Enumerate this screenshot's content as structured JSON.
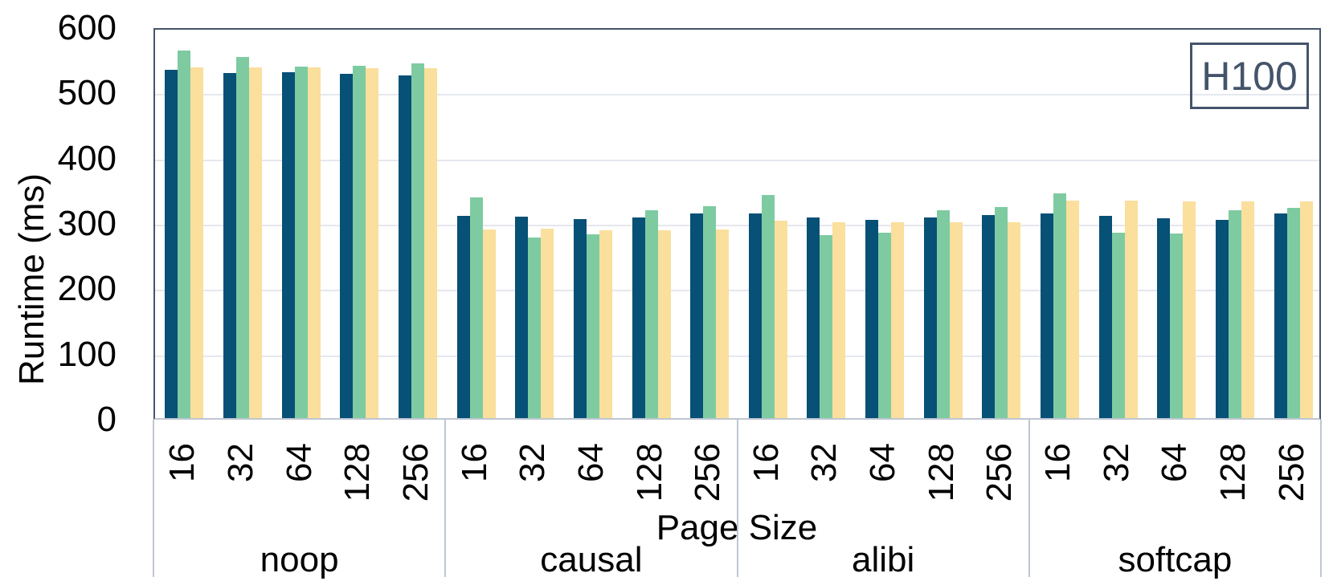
{
  "chart_data": {
    "type": "bar",
    "title": "",
    "xlabel": "Page Size",
    "ylabel": "Runtime (ms)",
    "ylim": [
      0,
      600
    ],
    "yticks": [
      0,
      100,
      200,
      300,
      400,
      500,
      600
    ],
    "grid": true,
    "legend_position": "none",
    "annotation": "H100",
    "groups": [
      "noop",
      "causal",
      "alibi",
      "softcap"
    ],
    "page_sizes": [
      "16",
      "32",
      "64",
      "128",
      "256"
    ],
    "series": [
      {
        "name": "series-dark-blue",
        "color": "#075076",
        "values_by_group": {
          "noop": [
            534,
            529,
            530,
            528,
            525
          ],
          "causal": [
            310,
            309,
            305,
            307,
            313
          ],
          "alibi": [
            314,
            308,
            304,
            308,
            311
          ],
          "softcap": [
            314,
            310,
            306,
            304,
            313
          ]
        }
      },
      {
        "name": "series-green",
        "color": "#7ECBA1",
        "values_by_group": {
          "noop": [
            563,
            553,
            539,
            540,
            543
          ],
          "causal": [
            338,
            277,
            281,
            318,
            324
          ],
          "alibi": [
            342,
            280,
            284,
            319,
            323
          ],
          "softcap": [
            344,
            284,
            283,
            318,
            322
          ]
        }
      },
      {
        "name": "series-yellow",
        "color": "#FADF9D",
        "values_by_group": {
          "noop": [
            537,
            537,
            537,
            536,
            536
          ],
          "causal": [
            289,
            290,
            288,
            288,
            289
          ],
          "alibi": [
            302,
            300,
            300,
            300,
            300
          ],
          "softcap": [
            333,
            333,
            332,
            332,
            332
          ]
        }
      }
    ],
    "frame_color": "#44546A",
    "gridline_color": "#E5E8EE",
    "axis_line_color": "#BFC6D2"
  }
}
